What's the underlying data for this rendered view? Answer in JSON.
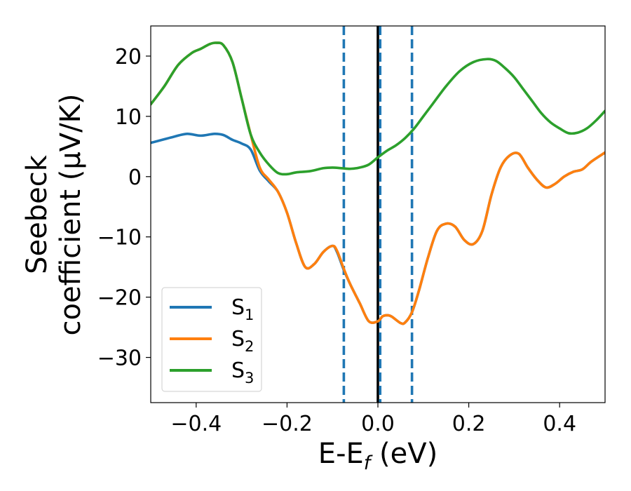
{
  "chart_data": {
    "type": "line",
    "xlabel": "E-E",
    "xlabel_sub": "f",
    "xlabel_unit": " (eV)",
    "ylabel_line1": "Seebeck",
    "ylabel_line2": "coefficient  (μV/K)",
    "xlim": [
      -0.5,
      0.5
    ],
    "ylim": [
      -37.5,
      25
    ],
    "xticks": [
      -0.4,
      -0.2,
      0.0,
      0.2,
      0.4
    ],
    "xtick_labels": [
      "−0.4",
      "−0.2",
      "0.0",
      "0.2",
      "0.4"
    ],
    "yticks": [
      20,
      10,
      0,
      -10,
      -20,
      -30
    ],
    "ytick_labels": [
      "20",
      "10",
      "0",
      "−10",
      "−20",
      "−30"
    ],
    "vlines": [
      {
        "x": -0.075,
        "style": "dashed",
        "color": "#1f77b4"
      },
      {
        "x": 0.0,
        "style": "solid",
        "color": "#000000"
      },
      {
        "x": 0.005,
        "style": "dashed",
        "color": "#1f77b4"
      },
      {
        "x": 0.075,
        "style": "dashed",
        "color": "#1f77b4"
      }
    ],
    "legend_position": "lower-left",
    "series": [
      {
        "name": "S",
        "name_sub": "1",
        "color": "#1f77b4",
        "x": [
          -0.5,
          -0.45,
          -0.42,
          -0.39,
          -0.36,
          -0.34,
          -0.32,
          -0.3,
          -0.28,
          -0.26,
          -0.24,
          -0.22,
          -0.2,
          -0.18,
          -0.16,
          -0.14,
          -0.12,
          -0.1,
          -0.09,
          -0.075,
          -0.06,
          -0.04,
          -0.02,
          0.0,
          0.01,
          0.02,
          0.03,
          0.05,
          0.06,
          0.075,
          0.09,
          0.11,
          0.13,
          0.15,
          0.17,
          0.19,
          0.21,
          0.23,
          0.25,
          0.27,
          0.29,
          0.31,
          0.33,
          0.35,
          0.37,
          0.39,
          0.41,
          0.43,
          0.45,
          0.47,
          0.5
        ],
        "y": [
          5.6,
          6.6,
          7.1,
          6.8,
          7.1,
          6.9,
          6.1,
          5.5,
          4.5,
          1.0,
          -0.8,
          -2.5,
          -6.0,
          -11.0,
          -15.0,
          -14.5,
          -12.5,
          -11.5,
          -12.5,
          -15.5,
          -18.0,
          -21.0,
          -24.0,
          -24.0,
          -23.2,
          -23.0,
          -23.2,
          -24.3,
          -24.2,
          -22.5,
          -19.0,
          -13.5,
          -9.0,
          -7.8,
          -8.3,
          -10.5,
          -11.2,
          -9.0,
          -3.0,
          1.5,
          3.5,
          3.8,
          1.5,
          -0.5,
          -1.8,
          -1.2,
          0.0,
          0.8,
          1.2,
          2.5,
          4.0
        ]
      },
      {
        "name": "S",
        "name_sub": "2",
        "color": "#ff7f0e",
        "x": [
          -0.5,
          -0.47,
          -0.44,
          -0.41,
          -0.39,
          -0.37,
          -0.355,
          -0.34,
          -0.32,
          -0.3,
          -0.28,
          -0.26,
          -0.24,
          -0.22,
          -0.2,
          -0.18,
          -0.16,
          -0.14,
          -0.12,
          -0.1,
          -0.09,
          -0.075,
          -0.06,
          -0.04,
          -0.02,
          0.0,
          0.01,
          0.02,
          0.03,
          0.05,
          0.06,
          0.075,
          0.09,
          0.11,
          0.13,
          0.15,
          0.17,
          0.19,
          0.21,
          0.23,
          0.25,
          0.27,
          0.29,
          0.31,
          0.33,
          0.35,
          0.37,
          0.39,
          0.41,
          0.43,
          0.45,
          0.47,
          0.5
        ],
        "y": [
          12.0,
          15.0,
          18.5,
          20.5,
          21.2,
          22.0,
          22.2,
          21.8,
          19.0,
          13.0,
          7.0,
          1.5,
          -0.5,
          -2.5,
          -6.0,
          -11.0,
          -15.0,
          -14.5,
          -12.5,
          -11.5,
          -12.3,
          -15.3,
          -18.0,
          -21.0,
          -24.0,
          -24.0,
          -23.2,
          -23.0,
          -23.2,
          -24.3,
          -24.2,
          -22.5,
          -19.0,
          -13.5,
          -9.0,
          -7.8,
          -8.3,
          -10.5,
          -11.2,
          -9.0,
          -3.0,
          1.5,
          3.5,
          3.8,
          1.5,
          -0.5,
          -1.8,
          -1.2,
          0.0,
          0.8,
          1.2,
          2.5,
          4.0
        ]
      },
      {
        "name": "S",
        "name_sub": "3",
        "color": "#2ca02c",
        "x": [
          -0.5,
          -0.47,
          -0.44,
          -0.41,
          -0.39,
          -0.37,
          -0.355,
          -0.34,
          -0.32,
          -0.3,
          -0.28,
          -0.26,
          -0.24,
          -0.22,
          -0.2,
          -0.18,
          -0.15,
          -0.12,
          -0.1,
          -0.08,
          -0.06,
          -0.04,
          -0.02,
          0.0,
          0.02,
          0.04,
          0.06,
          0.08,
          0.1,
          0.12,
          0.15,
          0.18,
          0.21,
          0.24,
          0.26,
          0.28,
          0.3,
          0.32,
          0.34,
          0.36,
          0.38,
          0.4,
          0.42,
          0.44,
          0.46,
          0.48,
          0.5
        ],
        "y": [
          12.0,
          15.0,
          18.5,
          20.5,
          21.2,
          22.0,
          22.2,
          21.8,
          19.0,
          13.0,
          7.0,
          4.0,
          2.0,
          0.6,
          0.4,
          0.7,
          0.9,
          1.4,
          1.5,
          1.4,
          1.3,
          1.5,
          2.0,
          3.2,
          4.3,
          5.2,
          6.4,
          8.0,
          10.0,
          12.0,
          15.0,
          17.5,
          19.0,
          19.5,
          19.2,
          18.0,
          16.5,
          14.5,
          12.5,
          10.5,
          9.0,
          8.0,
          7.2,
          7.3,
          8.0,
          9.3,
          10.9
        ]
      }
    ]
  }
}
